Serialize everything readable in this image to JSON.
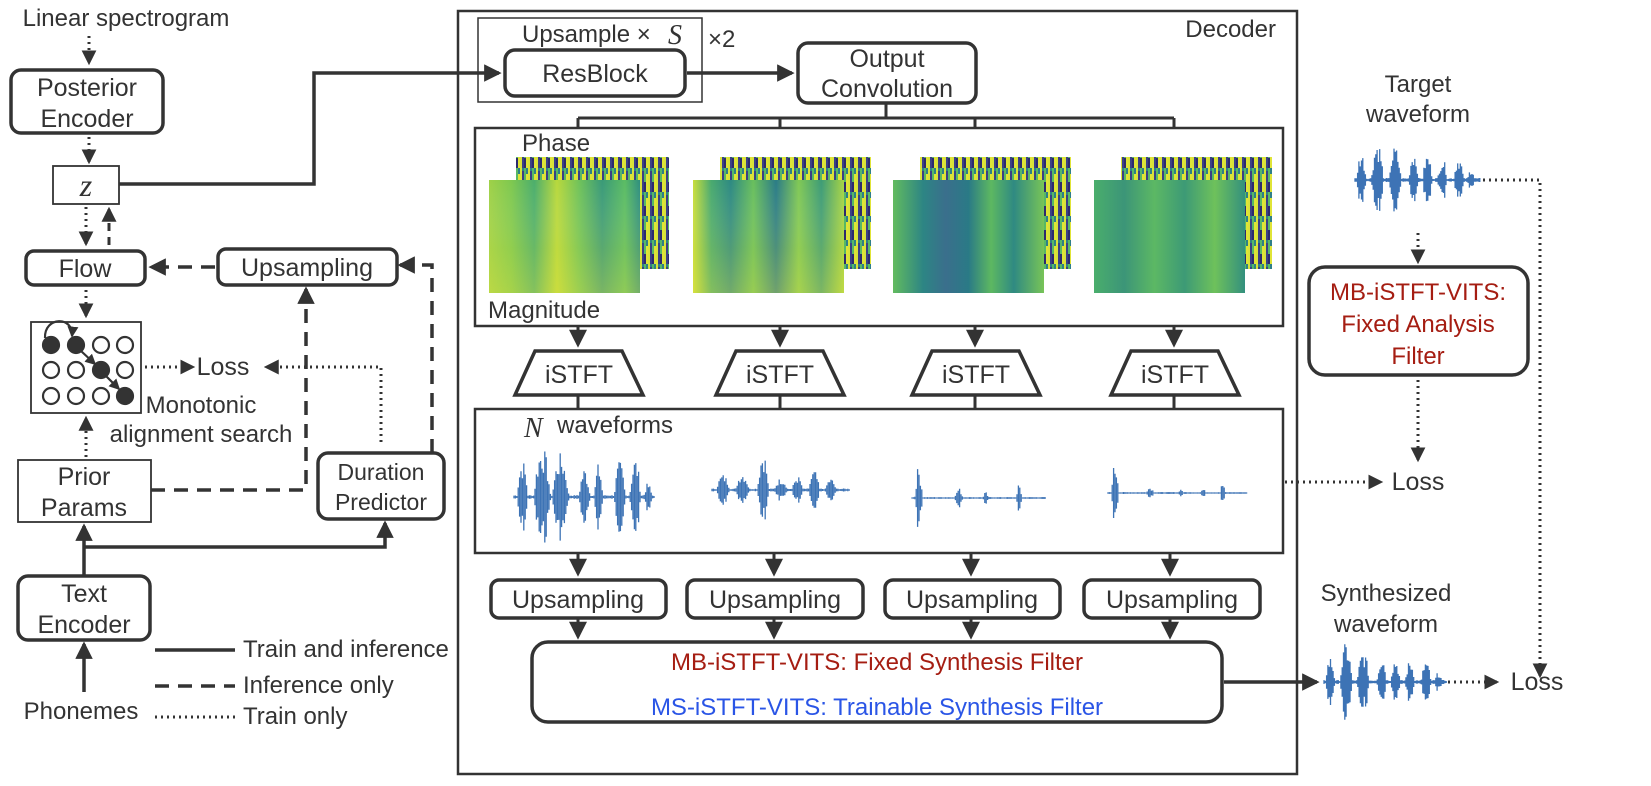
{
  "labels": {
    "linear_spectrogram": "Linear spectrogram",
    "posterior_encoder_1": "Posterior",
    "posterior_encoder_2": "Encoder",
    "z": "z",
    "flow": "Flow",
    "upsampling_left": "Upsampling",
    "loss_mas": "Loss",
    "mas_1": "Monotonic",
    "mas_2": "alignment search",
    "prior_params_1": "Prior",
    "prior_params_2": "Params",
    "duration_predictor_1": "Duration",
    "duration_predictor_2": "Predictor",
    "text_encoder_1": "Text",
    "text_encoder_2": "Encoder",
    "phonemes": "Phonemes",
    "decoder": "Decoder",
    "upsample_s": "Upsample ×",
    "s_symbol": "S",
    "times_two": "×2",
    "resblock": "ResBlock",
    "output_conv_1": "Output",
    "output_conv_2": "Convolution",
    "phase": "Phase",
    "magnitude": "Magnitude",
    "istft": "iSTFT",
    "n_symbol": "N",
    "waveforms": "waveforms",
    "upsampling_dec": "Upsampling",
    "mb_synthesis": "MB-iSTFT-VITS: Fixed Synthesis Filter",
    "ms_synthesis": "MS-iSTFT-VITS: Trainable Synthesis Filter",
    "target_waveform_1": "Target",
    "target_waveform_2": "waveform",
    "mb_analysis_1": "MB-iSTFT-VITS:",
    "mb_analysis_2": "Fixed Analysis",
    "mb_analysis_3": "Filter",
    "loss_waveforms": "Loss",
    "synthesized_1": "Synthesized",
    "synthesized_2": "waveform",
    "loss_final": "Loss"
  },
  "legend": {
    "train_and_inference": "Train and inference",
    "inference_only": "Inference only",
    "train_only": "Train only"
  },
  "colors": {
    "stroke": "#333333",
    "waveform": "#3d73b5",
    "mb_red": "#a51d12",
    "ms_blue": "#2a55e6"
  }
}
